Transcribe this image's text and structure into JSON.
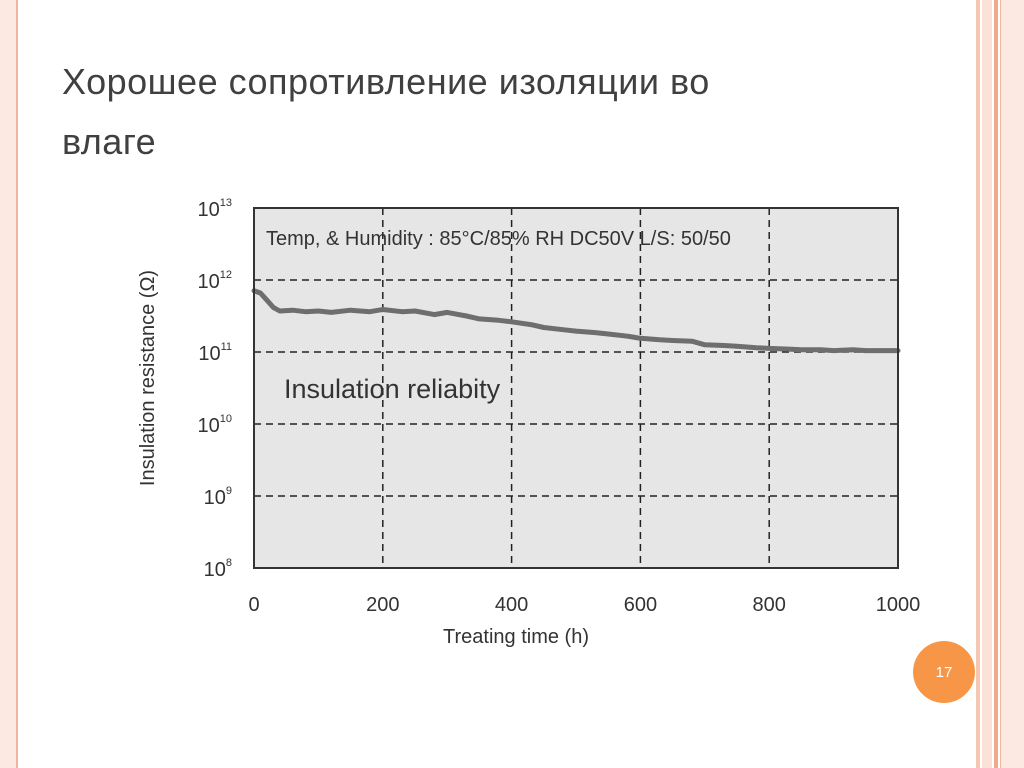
{
  "slide": {
    "title_line1": "Хорошее сопротивление изоляции во",
    "title_line2": "влаге",
    "page_number": "17"
  },
  "colors": {
    "accent": "#f79646",
    "title_text": "#404040",
    "plot_bg": "#e6e6e6",
    "series": "#6e6e6e"
  },
  "chart_data": {
    "type": "line",
    "title": "",
    "annotation_top": "Temp, & Humidity : 85°C/85% RH DC50V L/S: 50/50",
    "annotation_mid": "Insulation reliabity",
    "xlabel": "Treating time (h)",
    "ylabel": "Insulation resistance (Ω)",
    "xlim": [
      0,
      1000
    ],
    "ylim_log10": [
      8,
      13
    ],
    "y_scale": "log",
    "grid": true,
    "x_ticks": [
      0,
      200,
      400,
      600,
      800,
      1000
    ],
    "x_tick_labels": [
      "0",
      "200",
      "400",
      "600",
      "800",
      "1000"
    ],
    "y_ticks_log10": [
      8,
      9,
      10,
      11,
      12,
      13
    ],
    "y_tick_labels": [
      {
        "base": "10",
        "exp": "8"
      },
      {
        "base": "10",
        "exp": "9"
      },
      {
        "base": "10",
        "exp": "10"
      },
      {
        "base": "10",
        "exp": "11"
      },
      {
        "base": "10",
        "exp": "12"
      },
      {
        "base": "10",
        "exp": "13"
      }
    ],
    "series": [
      {
        "x": [
          0,
          10,
          20,
          30,
          40,
          60,
          80,
          100,
          120,
          150,
          180,
          200,
          230,
          250,
          280,
          300,
          330,
          350,
          380,
          400,
          430,
          450,
          480,
          500,
          530,
          550,
          580,
          600,
          630,
          650,
          680,
          700,
          730,
          750,
          780,
          800,
          830,
          850,
          880,
          900,
          930,
          950,
          980,
          1000
        ],
        "y_log10": [
          11.85,
          11.82,
          11.72,
          11.62,
          11.57,
          11.58,
          11.56,
          11.57,
          11.55,
          11.58,
          11.56,
          11.59,
          11.56,
          11.57,
          11.52,
          11.55,
          11.5,
          11.46,
          11.44,
          11.42,
          11.38,
          11.34,
          11.31,
          11.29,
          11.27,
          11.25,
          11.22,
          11.19,
          11.17,
          11.16,
          11.15,
          11.1,
          11.09,
          11.08,
          11.06,
          11.05,
          11.04,
          11.03,
          11.03,
          11.02,
          11.03,
          11.02,
          11.02,
          11.02
        ]
      }
    ]
  }
}
